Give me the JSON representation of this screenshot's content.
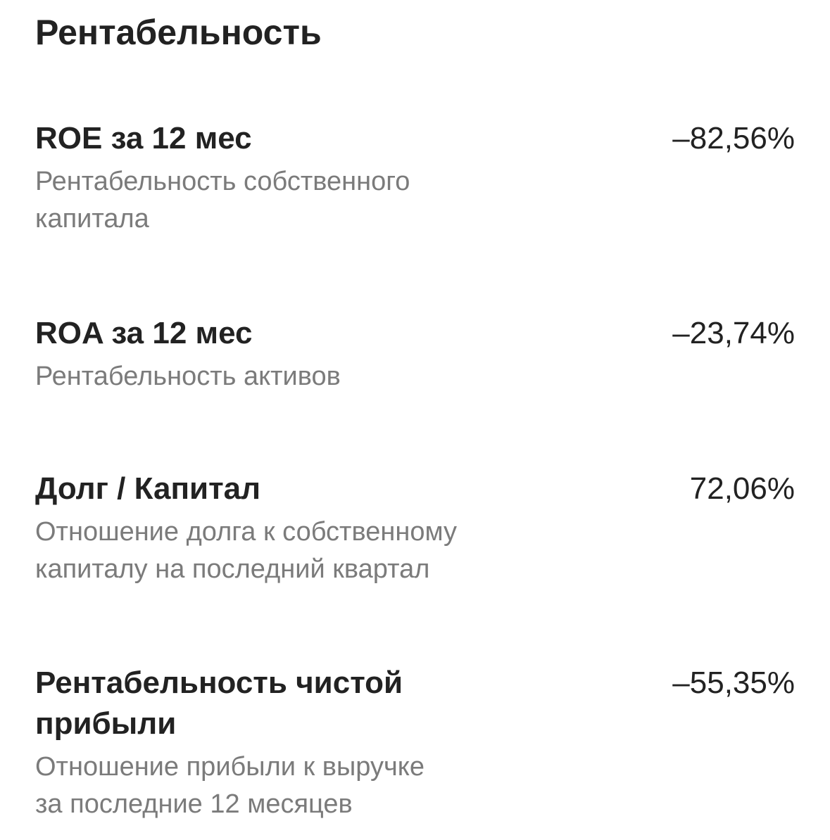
{
  "header": {
    "title": "Рентабельность"
  },
  "items": [
    {
      "label": [
        "ROE за 12 мес"
      ],
      "value": "–82,56%",
      "description": [
        "Рентабельность собственного",
        "капитала"
      ]
    },
    {
      "label": [
        "ROA за 12 мес"
      ],
      "value": "–23,74%",
      "description": [
        "Рентабельность активов"
      ]
    },
    {
      "label": [
        "Долг / Капитал"
      ],
      "value": "72,06%",
      "description": [
        "Отношение долга к собственному",
        "капиталу на последний квартал"
      ]
    },
    {
      "label": [
        "Рентабельность чистой",
        "прибыли"
      ],
      "value": "–55,35%",
      "description": [
        "Отношение прибыли к выручке",
        "за последние 12 месяцев"
      ]
    }
  ]
}
